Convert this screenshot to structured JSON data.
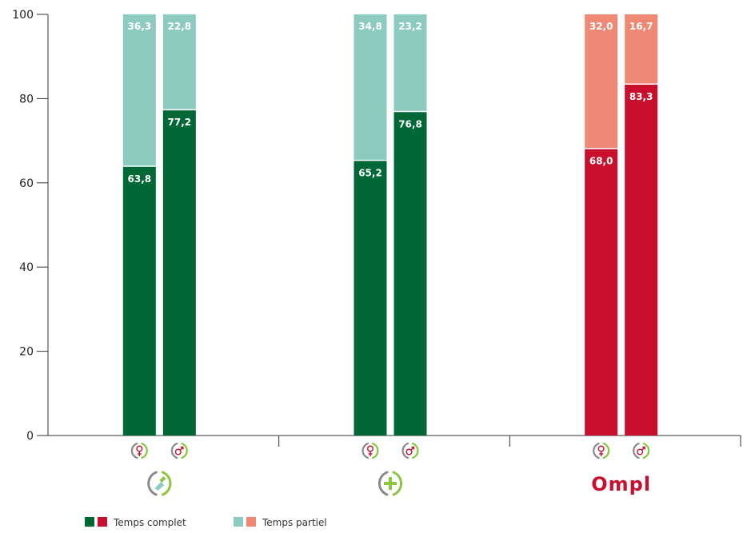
{
  "chart_data": {
    "type": "bar",
    "stacked": true,
    "ylim": [
      0,
      100
    ],
    "yticks": [
      "0",
      "20",
      "40",
      "60",
      "80",
      "100"
    ],
    "groups": [
      {
        "logo": "pharmacy-cross-logo",
        "bars": [
          {
            "sex": "female",
            "sex_icon": "female-symbol-icon",
            "complet": 63.8,
            "partiel": 36.3,
            "complet_label": "63,8",
            "partiel_label": "36,3",
            "complet_color": "#006837",
            "partiel_color": "#8ecbbf"
          },
          {
            "sex": "male",
            "sex_icon": "male-symbol-icon",
            "complet": 77.2,
            "partiel": 22.8,
            "complet_label": "77,2",
            "partiel_label": "22,8",
            "complet_color": "#006837",
            "partiel_color": "#8ecbbf"
          }
        ]
      },
      {
        "logo": "plus-cross-logo",
        "bars": [
          {
            "sex": "female",
            "sex_icon": "female-symbol-icon",
            "complet": 65.2,
            "partiel": 34.8,
            "complet_label": "65,2",
            "partiel_label": "34,8",
            "complet_color": "#006837",
            "partiel_color": "#8ecbbf"
          },
          {
            "sex": "male",
            "sex_icon": "male-symbol-icon",
            "complet": 76.8,
            "partiel": 23.2,
            "complet_label": "76,8",
            "partiel_label": "23,2",
            "complet_color": "#006837",
            "partiel_color": "#8ecbbf"
          }
        ]
      },
      {
        "logo": "ompl-logo",
        "logo_text": "Ompl",
        "bars": [
          {
            "sex": "female",
            "sex_icon": "female-symbol-icon",
            "complet": 68.0,
            "partiel": 32.0,
            "complet_label": "68,0",
            "partiel_label": "32,0",
            "complet_color": "#c8102e",
            "partiel_color": "#f08876"
          },
          {
            "sex": "male",
            "sex_icon": "male-symbol-icon",
            "complet": 83.3,
            "partiel": 16.7,
            "complet_label": "83,3",
            "partiel_label": "16,7",
            "complet_color": "#c8102e",
            "partiel_color": "#f08876"
          }
        ]
      }
    ],
    "legend": [
      {
        "label": "Temps complet",
        "colors": [
          "#006837",
          "#c8102e"
        ]
      },
      {
        "label": "Temps partiel",
        "colors": [
          "#8ecbbf",
          "#f08876"
        ]
      }
    ],
    "legend_position": "bottom-left",
    "grid": false
  },
  "colors": {
    "female_icon": "#c8102e",
    "male_icon": "#c8102e",
    "ring_green": "#8cc63f",
    "ring_grey": "#8a8a8a",
    "axis": "#333333"
  }
}
